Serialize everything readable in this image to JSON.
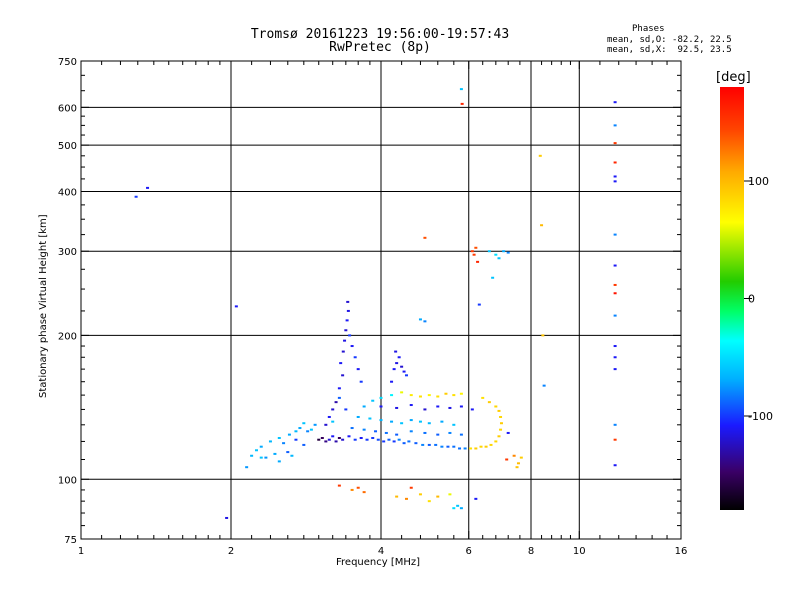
{
  "header": {
    "title_line1": "Tromsø 20161223 19:56:00-19:57:43",
    "title_line2": "RwPretec (8p)"
  },
  "phases_box": {
    "heading": "Phases",
    "line_o": "mean, sd,O: -82.2, 22.5",
    "line_x": "mean, sd,X:  92.5, 23.5"
  },
  "chart_data": {
    "type": "scatter",
    "title": "Tromsø 20161223 19:56:00-19:57:43",
    "subtitle": "RwPretec (8p)",
    "xlabel": "Frequency [MHz]",
    "ylabel": "Stationary phase Virtual Height [km]",
    "x_scale": "log",
    "y_scale": "log",
    "xlim": [
      1,
      16
    ],
    "ylim": [
      75,
      750
    ],
    "x_ticks": [
      {
        "value": 1,
        "label": "1"
      },
      {
        "value": 2,
        "label": "2"
      },
      {
        "value": 4,
        "label": "4"
      },
      {
        "value": 6,
        "label": "6"
      },
      {
        "value": 8,
        "label": "8"
      },
      {
        "value": 10,
        "label": "10"
      },
      {
        "value": 16,
        "label": "16"
      }
    ],
    "x_gridlines": [
      2,
      4,
      6,
      8,
      10
    ],
    "y_ticks": [
      {
        "value": 75,
        "label": "75"
      },
      {
        "value": 100,
        "label": "100"
      },
      {
        "value": 200,
        "label": "200"
      },
      {
        "value": 300,
        "label": "300"
      },
      {
        "value": 400,
        "label": "400"
      },
      {
        "value": 500,
        "label": "500"
      },
      {
        "value": 600,
        "label": "600"
      },
      {
        "value": 750,
        "label": "750"
      }
    ],
    "y_gridlines": [
      100,
      200,
      300,
      400,
      500,
      600
    ],
    "grid": true,
    "colorbar": {
      "unit": "[deg]",
      "range": [
        -180,
        180
      ],
      "ticks": [
        {
          "value": 100,
          "label": "100"
        },
        {
          "value": 0,
          "label": "0"
        },
        {
          "value": -100,
          "label": "-100"
        }
      ],
      "colors": [
        "#000000",
        "#3a0066",
        "#1a1aff",
        "#00b0ff",
        "#00ffff",
        "#00ff66",
        "#22cc00",
        "#ffff00",
        "#ffaa00",
        "#ff4400",
        "#ff0000"
      ]
    },
    "points": [
      [
        1.29,
        390,
        -100
      ],
      [
        1.36,
        407,
        -110
      ],
      [
        2.05,
        230,
        -110
      ],
      [
        1.96,
        83,
        -115
      ],
      [
        2.25,
        115,
        -60
      ],
      [
        2.3,
        117,
        -70
      ],
      [
        2.4,
        120,
        -65
      ],
      [
        2.5,
        122,
        -60
      ],
      [
        2.55,
        119,
        -80
      ],
      [
        2.62,
        124,
        -70
      ],
      [
        2.7,
        126,
        -65
      ],
      [
        2.75,
        128,
        -70
      ],
      [
        2.8,
        131,
        -60
      ],
      [
        2.85,
        126,
        -80
      ],
      [
        2.9,
        127,
        -60
      ],
      [
        2.95,
        130,
        -75
      ],
      [
        2.45,
        113,
        -70
      ],
      [
        2.35,
        111,
        -75
      ],
      [
        2.6,
        114,
        -90
      ],
      [
        2.2,
        112,
        -65
      ],
      [
        2.15,
        106,
        -75
      ],
      [
        2.7,
        121,
        -100
      ],
      [
        2.8,
        118,
        -90
      ],
      [
        3.0,
        121,
        -160
      ],
      [
        3.05,
        122,
        -150
      ],
      [
        3.1,
        120,
        -140
      ],
      [
        3.15,
        121,
        -120
      ],
      [
        3.2,
        123,
        -110
      ],
      [
        3.25,
        120,
        -130
      ],
      [
        3.3,
        122,
        -150
      ],
      [
        3.35,
        121,
        -120
      ],
      [
        3.45,
        123,
        -110
      ],
      [
        3.55,
        121,
        -100
      ],
      [
        3.65,
        122,
        -110
      ],
      [
        3.75,
        121,
        -100
      ],
      [
        3.85,
        122,
        -100
      ],
      [
        3.95,
        121,
        -95
      ],
      [
        4.05,
        120,
        -100
      ],
      [
        4.15,
        121,
        -90
      ],
      [
        4.25,
        120,
        -100
      ],
      [
        4.35,
        121,
        -80
      ],
      [
        4.45,
        119,
        -90
      ],
      [
        4.55,
        120,
        -85
      ],
      [
        4.7,
        119,
        -90
      ],
      [
        4.85,
        118,
        -80
      ],
      [
        5.0,
        118,
        -90
      ],
      [
        5.15,
        118,
        -85
      ],
      [
        5.3,
        117,
        -80
      ],
      [
        5.45,
        117,
        -90
      ],
      [
        5.6,
        117,
        -85
      ],
      [
        5.75,
        116,
        -85
      ],
      [
        5.9,
        116,
        -80
      ],
      [
        6.05,
        116,
        80
      ],
      [
        6.2,
        116,
        90
      ],
      [
        6.35,
        117,
        85
      ],
      [
        6.5,
        117,
        90
      ],
      [
        6.65,
        118,
        85
      ],
      [
        6.8,
        120,
        85
      ],
      [
        6.9,
        123,
        90
      ],
      [
        6.95,
        127,
        85
      ],
      [
        6.98,
        131,
        90
      ],
      [
        6.95,
        135,
        85
      ],
      [
        6.9,
        139,
        90
      ],
      [
        6.8,
        142,
        85
      ],
      [
        6.6,
        145,
        90
      ],
      [
        6.4,
        148,
        80
      ],
      [
        3.1,
        130,
        -120
      ],
      [
        3.15,
        135,
        -110
      ],
      [
        3.2,
        140,
        -120
      ],
      [
        3.25,
        145,
        -130
      ],
      [
        3.3,
        155,
        -110
      ],
      [
        3.35,
        165,
        -120
      ],
      [
        3.32,
        175,
        -110
      ],
      [
        3.36,
        185,
        -120
      ],
      [
        3.38,
        195,
        -115
      ],
      [
        3.4,
        205,
        -120
      ],
      [
        3.42,
        215,
        -110
      ],
      [
        3.44,
        225,
        -115
      ],
      [
        3.43,
        235,
        -120
      ],
      [
        3.46,
        200,
        -100
      ],
      [
        3.5,
        190,
        -110
      ],
      [
        3.55,
        180,
        -100
      ],
      [
        3.6,
        170,
        -110
      ],
      [
        3.65,
        160,
        -100
      ],
      [
        4.25,
        170,
        -110
      ],
      [
        4.3,
        175,
        -115
      ],
      [
        4.35,
        180,
        -110
      ],
      [
        4.4,
        172,
        -120
      ],
      [
        4.45,
        168,
        -110
      ],
      [
        4.5,
        165,
        -100
      ],
      [
        4.2,
        160,
        -110
      ],
      [
        4.28,
        185,
        -115
      ],
      [
        3.7,
        142,
        -70
      ],
      [
        3.85,
        146,
        -60
      ],
      [
        4.0,
        148,
        -50
      ],
      [
        4.2,
        150,
        -40
      ],
      [
        4.4,
        152,
        60
      ],
      [
        4.6,
        150,
        75
      ],
      [
        4.8,
        149,
        80
      ],
      [
        5.0,
        150,
        70
      ],
      [
        5.2,
        149,
        80
      ],
      [
        5.4,
        151,
        90
      ],
      [
        5.6,
        150,
        80
      ],
      [
        5.8,
        151,
        70
      ],
      [
        3.6,
        135,
        -70
      ],
      [
        3.8,
        134,
        -60
      ],
      [
        4.0,
        133,
        -65
      ],
      [
        4.2,
        132,
        -70
      ],
      [
        4.4,
        131,
        -60
      ],
      [
        4.6,
        133,
        -70
      ],
      [
        4.8,
        132,
        -60
      ],
      [
        5.0,
        131,
        -65
      ],
      [
        5.3,
        132,
        -70
      ],
      [
        5.6,
        130,
        -60
      ],
      [
        3.5,
        128,
        -85
      ],
      [
        3.7,
        127,
        -80
      ],
      [
        3.9,
        126,
        -90
      ],
      [
        4.1,
        125,
        -85
      ],
      [
        4.3,
        124,
        -90
      ],
      [
        4.6,
        126,
        -80
      ],
      [
        4.9,
        125,
        -85
      ],
      [
        5.2,
        124,
        -90
      ],
      [
        5.5,
        125,
        -80
      ],
      [
        5.8,
        124,
        -85
      ],
      [
        4.0,
        142,
        -110
      ],
      [
        4.3,
        141,
        -115
      ],
      [
        4.6,
        143,
        -110
      ],
      [
        4.9,
        140,
        -120
      ],
      [
        5.2,
        142,
        -110
      ],
      [
        5.5,
        141,
        -115
      ],
      [
        5.8,
        142,
        -110
      ],
      [
        6.1,
        140,
        -110
      ],
      [
        3.4,
        140,
        -100
      ],
      [
        3.3,
        148,
        -90
      ],
      [
        3.2,
        132,
        -60
      ],
      [
        6.1,
        300,
        150
      ],
      [
        6.2,
        305,
        140
      ],
      [
        6.15,
        295,
        150
      ],
      [
        6.25,
        285,
        160
      ],
      [
        6.3,
        232,
        -100
      ],
      [
        6.6,
        300,
        -60
      ],
      [
        6.8,
        295,
        -50
      ],
      [
        6.9,
        290,
        -60
      ],
      [
        7.05,
        300,
        -70
      ],
      [
        7.2,
        298,
        -80
      ],
      [
        5.8,
        655,
        -60
      ],
      [
        5.82,
        610,
        160
      ],
      [
        4.9,
        320,
        140
      ],
      [
        4.8,
        216,
        -70
      ],
      [
        4.9,
        214,
        -80
      ],
      [
        6.7,
        264,
        -60
      ],
      [
        7.2,
        125,
        -110
      ],
      [
        7.15,
        110,
        150
      ],
      [
        7.4,
        112,
        120
      ],
      [
        7.55,
        108,
        100
      ],
      [
        7.65,
        111,
        90
      ],
      [
        7.5,
        106,
        95
      ],
      [
        8.35,
        475,
        90
      ],
      [
        8.4,
        340,
        100
      ],
      [
        8.45,
        200,
        95
      ],
      [
        8.5,
        157,
        -80
      ],
      [
        11.8,
        615,
        -110
      ],
      [
        11.8,
        550,
        -80
      ],
      [
        11.8,
        505,
        150
      ],
      [
        11.8,
        460,
        160
      ],
      [
        11.8,
        430,
        -110
      ],
      [
        11.8,
        420,
        -110
      ],
      [
        11.8,
        325,
        -80
      ],
      [
        11.8,
        280,
        -110
      ],
      [
        11.8,
        255,
        150
      ],
      [
        11.8,
        245,
        170
      ],
      [
        11.8,
        220,
        -80
      ],
      [
        11.8,
        190,
        -110
      ],
      [
        11.8,
        180,
        -110
      ],
      [
        11.8,
        170,
        -110
      ],
      [
        11.8,
        130,
        -80
      ],
      [
        11.8,
        121,
        150
      ],
      [
        11.8,
        107,
        -110
      ],
      [
        3.3,
        97,
        150
      ],
      [
        3.5,
        95,
        120
      ],
      [
        3.6,
        96,
        140
      ],
      [
        3.7,
        94,
        130
      ],
      [
        4.3,
        92,
        100
      ],
      [
        4.5,
        91,
        120
      ],
      [
        4.8,
        93,
        90
      ],
      [
        5.0,
        90,
        80
      ],
      [
        5.2,
        92,
        100
      ],
      [
        5.5,
        93,
        60
      ],
      [
        5.7,
        88,
        -60
      ],
      [
        5.8,
        87,
        -70
      ],
      [
        5.6,
        87,
        -50
      ],
      [
        6.2,
        91,
        -110
      ],
      [
        4.6,
        96,
        150
      ],
      [
        2.3,
        111,
        -60
      ],
      [
        2.5,
        109,
        -70
      ],
      [
        2.65,
        112,
        -65
      ]
    ]
  }
}
